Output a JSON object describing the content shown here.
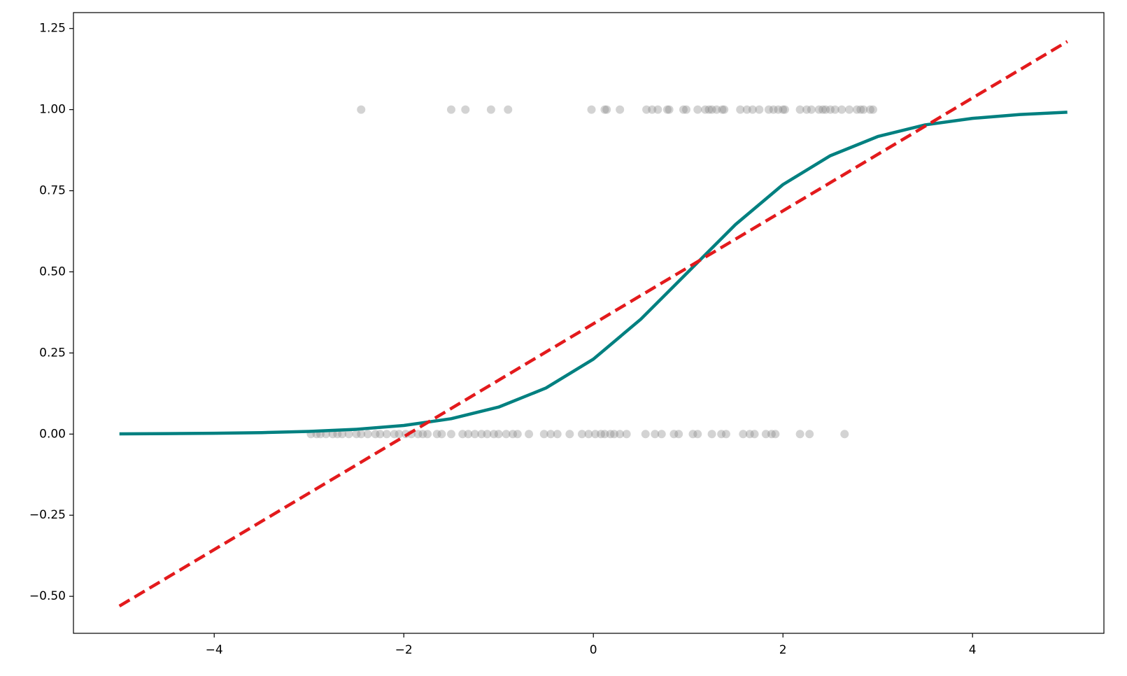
{
  "chart_data": {
    "type": "scatter",
    "xlim": [
      -5.485,
      5.386
    ],
    "ylim": [
      -0.614,
      1.299
    ],
    "xticks": [
      {
        "value": -4,
        "label": "−4"
      },
      {
        "value": -2,
        "label": "−2"
      },
      0,
      2,
      4
    ],
    "yticks": [
      {
        "value": -0.5,
        "label": "−0.50"
      },
      {
        "value": -0.25,
        "label": "−0.25"
      },
      {
        "value": 0,
        "label": "0.00"
      },
      {
        "value": 0.25,
        "label": "0.25"
      },
      {
        "value": 0.5,
        "label": "0.50"
      },
      {
        "value": 0.75,
        "label": "0.75"
      },
      {
        "value": 1,
        "label": "1.00"
      },
      {
        "value": 1.25,
        "label": "1.25"
      }
    ],
    "series": [
      {
        "type": "scatter",
        "color": "#808080",
        "x": [
          -2.45,
          -1.5,
          -1.35,
          -1.08,
          -0.9,
          -0.02,
          0.12,
          0.14,
          0.28,
          0.56,
          0.62,
          0.68,
          0.78,
          0.8,
          0.95,
          0.98,
          1.1,
          1.18,
          1.22,
          1.25,
          1.3,
          1.36,
          1.38,
          1.55,
          1.62,
          1.68,
          1.75,
          1.85,
          1.9,
          1.95,
          2.0,
          2.02,
          2.18,
          2.25,
          2.3,
          2.38,
          2.42,
          2.45,
          2.5,
          2.55,
          2.62,
          2.7,
          2.78,
          2.82,
          2.85,
          2.92,
          2.95,
          -2.98,
          -2.92,
          -2.88,
          -2.82,
          -2.75,
          -2.7,
          -2.65,
          -2.58,
          -2.5,
          -2.45,
          -2.38,
          -2.3,
          -2.25,
          -2.18,
          -2.1,
          -2.05,
          -1.98,
          -1.92,
          -1.85,
          -1.8,
          -1.75,
          -1.65,
          -1.6,
          -1.5,
          -1.38,
          -1.32,
          -1.25,
          -1.18,
          -1.12,
          -1.05,
          -1.0,
          -0.92,
          -0.85,
          -0.8,
          -0.68,
          -0.52,
          -0.45,
          -0.38,
          -0.25,
          -0.12,
          -0.05,
          0.02,
          0.08,
          0.12,
          0.18,
          0.22,
          0.28,
          0.35,
          0.55,
          0.65,
          0.72,
          0.85,
          0.9,
          1.05,
          1.1,
          1.25,
          1.35,
          1.4,
          1.58,
          1.65,
          1.7,
          1.82,
          1.88,
          1.92,
          2.18,
          2.28,
          2.65
        ],
        "values": [
          1,
          1,
          1,
          1,
          1,
          1,
          1,
          1,
          1,
          1,
          1,
          1,
          1,
          1,
          1,
          1,
          1,
          1,
          1,
          1,
          1,
          1,
          1,
          1,
          1,
          1,
          1,
          1,
          1,
          1,
          1,
          1,
          1,
          1,
          1,
          1,
          1,
          1,
          1,
          1,
          1,
          1,
          1,
          1,
          1,
          1,
          1,
          0,
          0,
          0,
          0,
          0,
          0,
          0,
          0,
          0,
          0,
          0,
          0,
          0,
          0,
          0,
          0,
          0,
          0,
          0,
          0,
          0,
          0,
          0,
          0,
          0,
          0,
          0,
          0,
          0,
          0,
          0,
          0,
          0,
          0,
          0,
          0,
          0,
          0,
          0,
          0,
          0,
          0,
          0,
          0,
          0,
          0,
          0,
          0,
          0,
          0,
          0,
          0,
          0,
          0,
          0,
          0,
          0,
          0,
          0,
          0,
          0,
          0,
          0,
          0,
          0,
          0,
          0
        ]
      },
      {
        "type": "line",
        "color": "#008080",
        "x": [
          -5,
          -4.5,
          -4,
          -3.5,
          -3,
          -2.5,
          -2,
          -1.5,
          -1,
          -0.5,
          0,
          0.5,
          1,
          1.5,
          2,
          2.5,
          3,
          3.5,
          4,
          4.5,
          5
        ],
        "values": [
          0.00075,
          0.00136,
          0.00247,
          0.0045,
          0.00816,
          0.0148,
          0.0266,
          0.0474,
          0.0832,
          0.142,
          0.231,
          0.354,
          0.5,
          0.646,
          0.769,
          0.858,
          0.917,
          0.953,
          0.973,
          0.985,
          0.992
        ]
      },
      {
        "type": "line",
        "color": "#e31a1c",
        "dashed": true,
        "x": [
          -5,
          5
        ],
        "values": [
          -0.53,
          1.21
        ]
      }
    ]
  }
}
